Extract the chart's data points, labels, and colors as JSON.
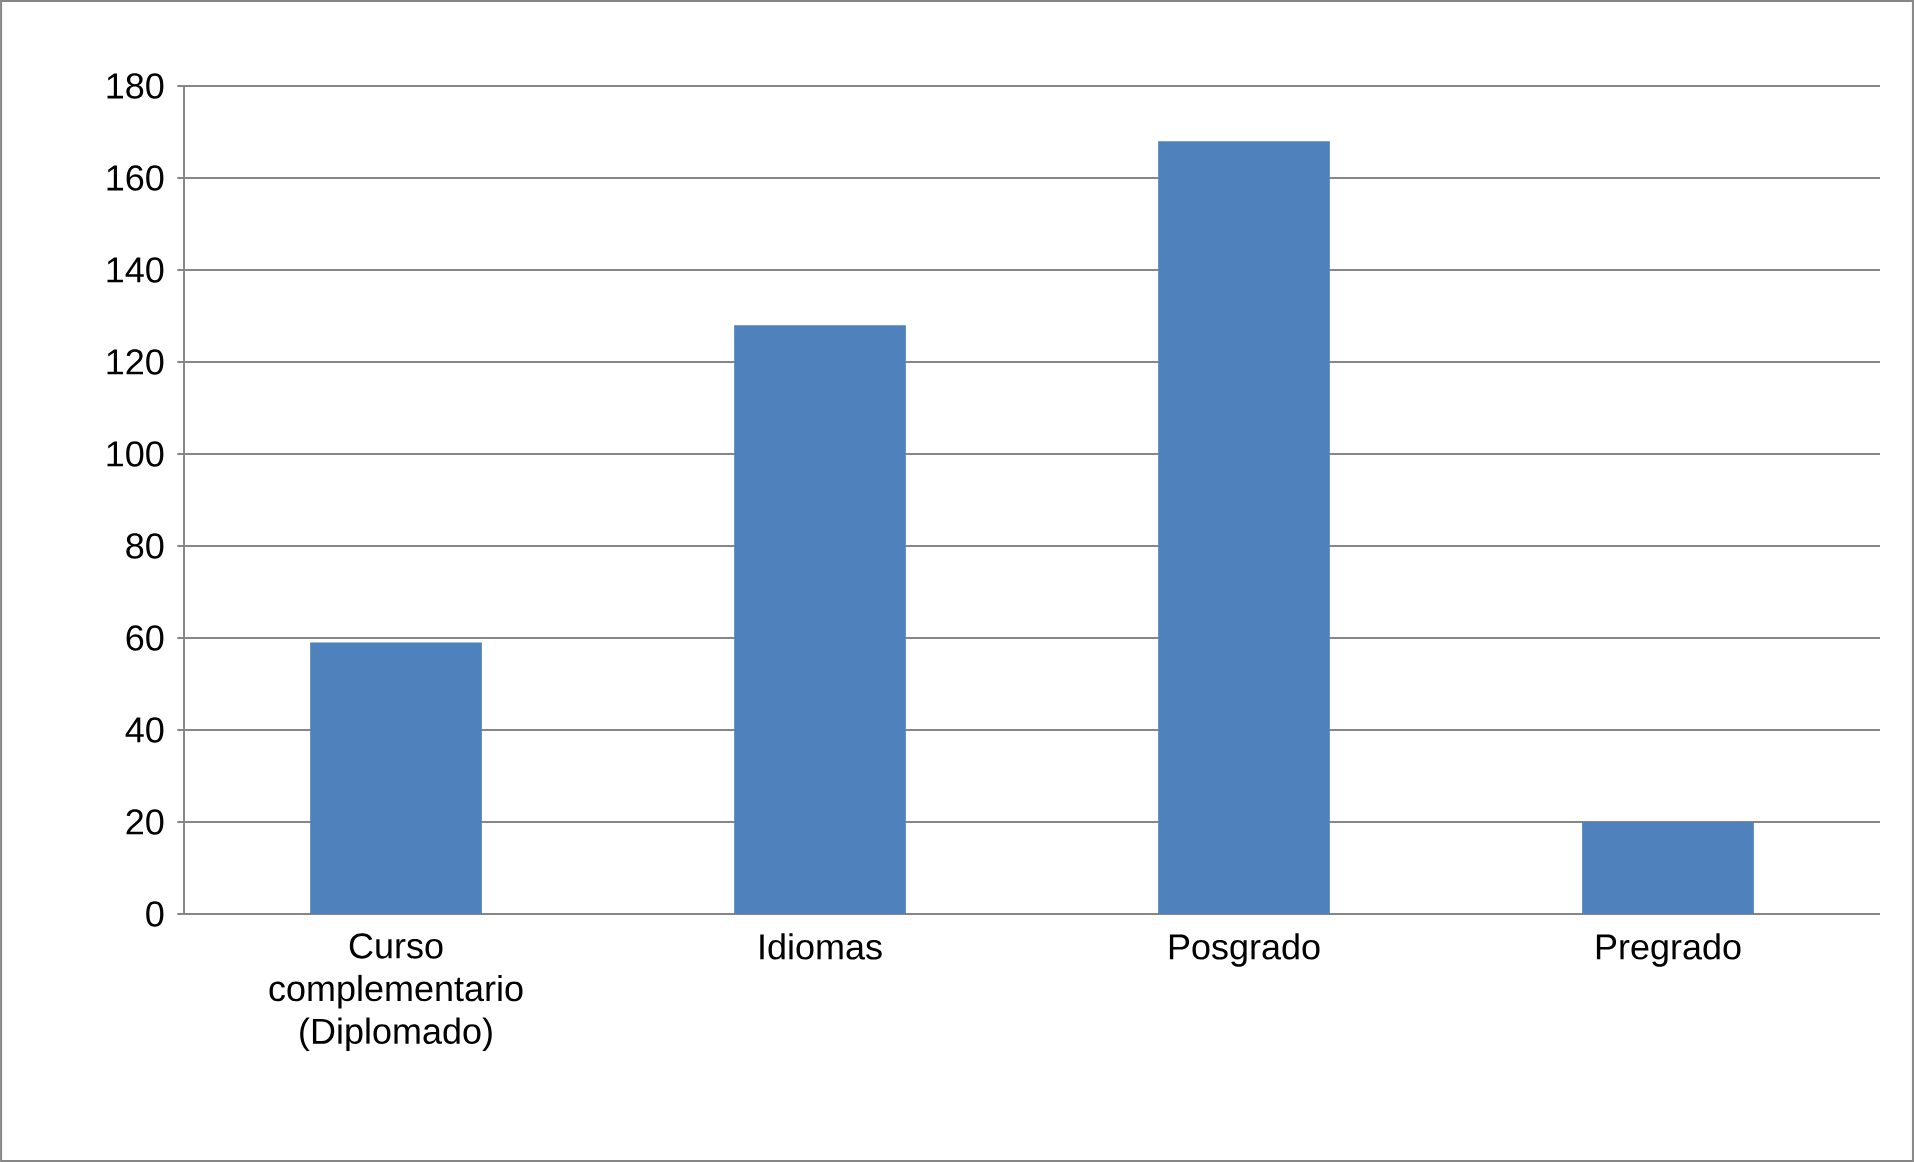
{
  "chart_data": {
    "type": "bar",
    "categories": [
      "Curso complementario (Diplomado)",
      "Idiomas",
      "Posgrado",
      "Pregrado"
    ],
    "values": [
      59,
      128,
      168,
      20
    ],
    "color": "#4f81bd",
    "ylim": [
      0,
      180
    ],
    "yticks": [
      0,
      20,
      40,
      60,
      80,
      100,
      120,
      140,
      160,
      180
    ],
    "grid": "y"
  }
}
